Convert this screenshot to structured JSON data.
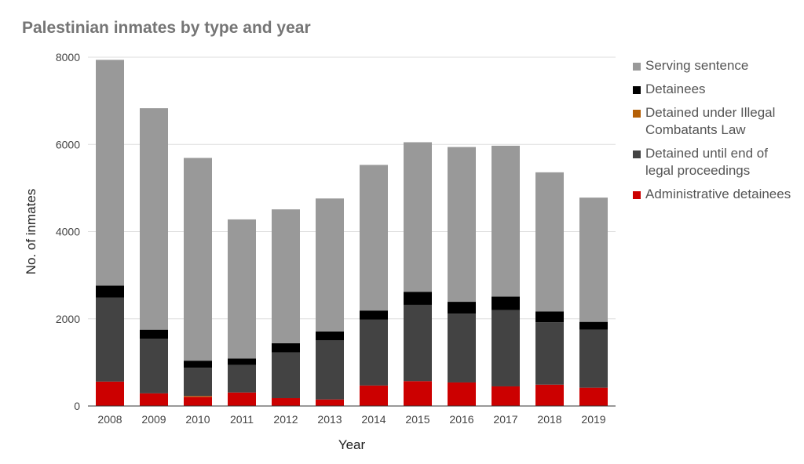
{
  "chart_data": {
    "type": "bar",
    "stacked": true,
    "title": "Palestinian inmates by type and year",
    "xlabel": "Year",
    "ylabel": "No. of inmates",
    "ylim": [
      0,
      8000
    ],
    "yticks": [
      0,
      2000,
      4000,
      6000,
      8000
    ],
    "grid": true,
    "legend_position": "right",
    "categories": [
      "2008",
      "2009",
      "2010",
      "2011",
      "2012",
      "2013",
      "2014",
      "2015",
      "2016",
      "2017",
      "2018",
      "2019"
    ],
    "series": [
      {
        "name": "Administrative detainees",
        "color": "#cc0000",
        "values": [
          560,
          290,
          210,
          310,
          180,
          150,
          470,
          570,
          540,
          450,
          490,
          420
        ]
      },
      {
        "name": "Detained under Illegal Combatants Law",
        "color": "#b45f06",
        "values": [
          0,
          0,
          20,
          0,
          0,
          0,
          0,
          0,
          0,
          0,
          0,
          0
        ]
      },
      {
        "name": "Detained until end of legal proceedings",
        "color": "#434343",
        "values": [
          1930,
          1250,
          650,
          630,
          1050,
          1360,
          1510,
          1750,
          1580,
          1750,
          1430,
          1330
        ]
      },
      {
        "name": "Detainees",
        "color": "#000000",
        "values": [
          270,
          210,
          160,
          150,
          210,
          200,
          210,
          300,
          270,
          310,
          250,
          180
        ]
      },
      {
        "name": "Serving sentence",
        "color": "#999999",
        "values": [
          5180,
          5080,
          4650,
          3190,
          3070,
          3050,
          3340,
          3430,
          3550,
          3460,
          3190,
          2850
        ]
      }
    ],
    "legend_order": [
      "Serving sentence",
      "Detainees",
      "Detained under Illegal Combatants Law",
      "Detained until end of legal proceedings",
      "Administrative detainees"
    ]
  }
}
